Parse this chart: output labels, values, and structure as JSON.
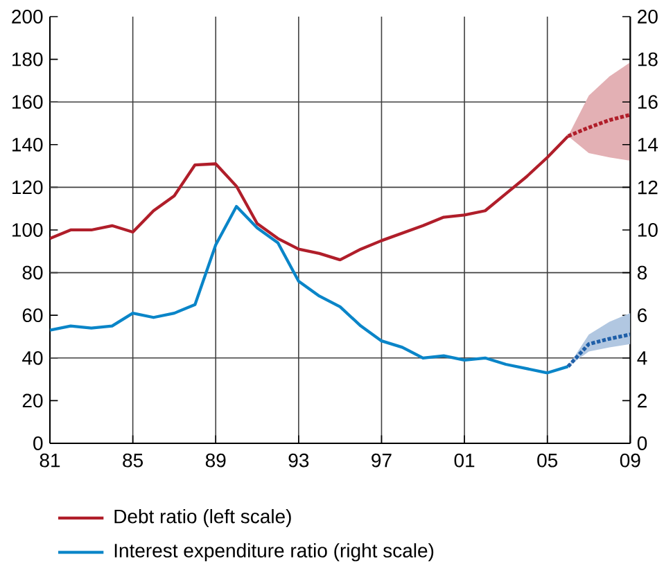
{
  "chart_data": {
    "type": "line",
    "xlim": [
      1981,
      2009
    ],
    "xticks": [
      {
        "value": 1981,
        "label": "81"
      },
      {
        "value": 1985,
        "label": "85"
      },
      {
        "value": 1989,
        "label": "89"
      },
      {
        "value": 1993,
        "label": "93"
      },
      {
        "value": 1997,
        "label": "97"
      },
      {
        "value": 2001,
        "label": "01"
      },
      {
        "value": 2005,
        "label": "05"
      },
      {
        "value": 2009,
        "label": "09"
      }
    ],
    "ylim": [
      0,
      200
    ],
    "yticks": [
      0,
      20,
      40,
      60,
      80,
      100,
      120,
      140,
      160,
      180,
      200
    ],
    "y2lim": [
      0,
      20
    ],
    "y2ticks": [
      0,
      2,
      4,
      6,
      8,
      10,
      12,
      14,
      16,
      18,
      20
    ],
    "grid": true,
    "legend": "bottom",
    "series": [
      {
        "name": "Debt ratio (left scale)",
        "color": "#b01e2a",
        "x": [
          1981,
          1982,
          1983,
          1984,
          1985,
          1986,
          1987,
          1988,
          1989,
          1990,
          1991,
          1992,
          1993,
          1994,
          1995,
          1996,
          1997,
          1998,
          1999,
          2000,
          2001,
          2002,
          2003,
          2004,
          2005,
          2006
        ],
        "values": [
          96,
          100,
          100,
          102,
          99,
          109,
          116,
          130.5,
          131,
          120.5,
          103,
          96,
          91,
          89,
          86,
          91,
          95,
          98.5,
          102,
          106,
          107,
          109,
          117,
          125,
          134,
          144
        ]
      },
      {
        "color": "#b01e2a",
        "line_style": "dotted",
        "x": [
          2006,
          2007,
          2008,
          2009
        ],
        "values": [
          144,
          148,
          151.5,
          154
        ],
        "lower": [
          144,
          136,
          134,
          132.5
        ],
        "upper": [
          144,
          163,
          172,
          178.6
        ]
      },
      {
        "name": "Interest expenditure ratio (right scale)",
        "color": "#0a85c8",
        "axis": "y2",
        "x": [
          1981,
          1982,
          1983,
          1984,
          1985,
          1986,
          1987,
          1988,
          1989,
          1990,
          1991,
          1992,
          1993,
          1994,
          1995,
          1996,
          1997,
          1998,
          1999,
          2000,
          2001,
          2002,
          2003,
          2004,
          2005,
          2006
        ],
        "values": [
          5.3,
          5.5,
          5.4,
          5.5,
          6.1,
          5.9,
          6.1,
          6.5,
          9.3,
          11.1,
          10.1,
          9.4,
          7.6,
          6.9,
          6.4,
          5.5,
          4.8,
          4.5,
          4.0,
          4.1,
          3.9,
          4.0,
          3.7,
          3.5,
          3.3,
          3.6
        ]
      },
      {
        "color": "#1f5fa8",
        "axis": "y2",
        "line_style": "dotted",
        "x": [
          2006,
          2007,
          2008,
          2009
        ],
        "values": [
          3.6,
          4.65,
          4.9,
          5.1
        ],
        "lower": [
          3.6,
          4.3,
          4.5,
          4.65
        ],
        "upper": [
          3.6,
          5.1,
          5.7,
          6.1
        ]
      }
    ]
  }
}
